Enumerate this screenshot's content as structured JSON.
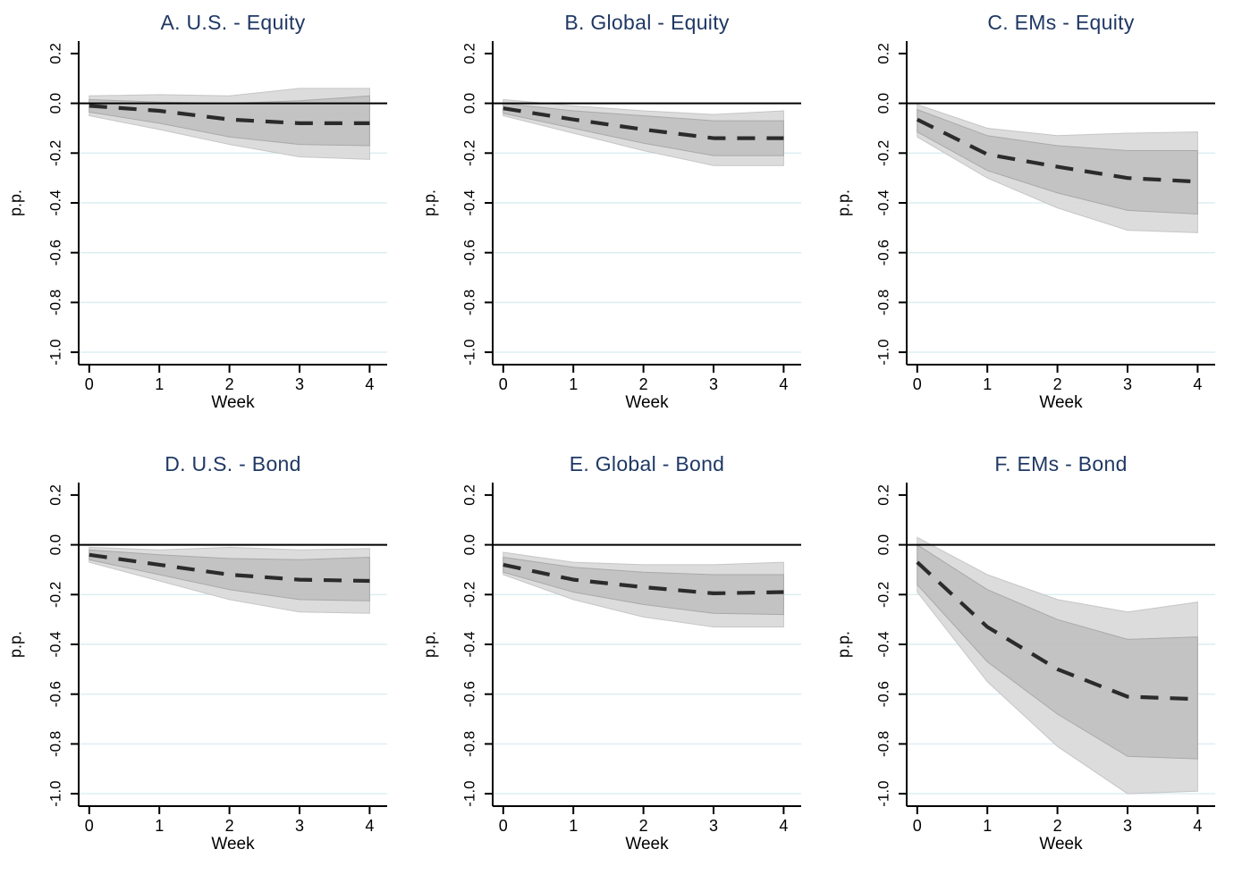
{
  "figure": {
    "description": "Six-panel impulse response figure: effect on fund flows over weeks, with dashed point estimate and two shaded confidence bands",
    "rows": 2,
    "cols": 3
  },
  "style": {
    "title_color": "#1f3864",
    "grid_color": "#daedf2",
    "axis_color": "#000000",
    "zero_line_color": "#000000",
    "line_color": "#2b2b2b",
    "inner_band_color": "#c1c1c1",
    "inner_band_edge": "#a9a9a9",
    "outer_band_color": "#dadada",
    "outer_band_edge": "#c6c6c6",
    "background_color": "#ffffff"
  },
  "chart_data": {
    "type": "line",
    "layout": "2x3 small multiples, shared axes",
    "xlabel": "Week",
    "ylabel": "p.p.",
    "x": [
      0,
      1,
      2,
      3,
      4
    ],
    "xtick_labels": [
      "0",
      "1",
      "2",
      "3",
      "4"
    ],
    "ytick_values": [
      0.2,
      0.0,
      -0.2,
      -0.4,
      -0.6,
      -0.8,
      -1.0
    ],
    "ytick_labels": [
      "0.2",
      "0.0",
      "-0.2",
      "-0.4",
      "-0.6",
      "-0.8",
      "-1.0"
    ],
    "grid_values": [
      -0.2,
      -0.4,
      -0.6,
      -0.8,
      -1.0
    ],
    "zero_line": 0.0,
    "xlim": [
      -0.15,
      4.25
    ],
    "ylim": [
      -1.05,
      0.25
    ],
    "grid": true,
    "legend": "none",
    "series_style": "dashed center line with inner (dark gray) and outer (light gray) confidence bands",
    "panels": [
      {
        "id": "A",
        "title": "A. U.S. - Equity",
        "center": [
          -0.01,
          -0.03,
          -0.065,
          -0.08,
          -0.08
        ],
        "inner_upper": [
          0.015,
          0.005,
          0.0,
          0.01,
          0.03
        ],
        "inner_lower": [
          -0.035,
          -0.08,
          -0.135,
          -0.165,
          -0.17
        ],
        "outer_upper": [
          0.03,
          0.035,
          0.03,
          0.06,
          0.06
        ],
        "outer_lower": [
          -0.05,
          -0.105,
          -0.165,
          -0.215,
          -0.225
        ]
      },
      {
        "id": "B",
        "title": "B. Global - Equity",
        "center": [
          -0.02,
          -0.065,
          -0.105,
          -0.14,
          -0.14
        ],
        "inner_upper": [
          0.0,
          -0.03,
          -0.05,
          -0.07,
          -0.07
        ],
        "inner_lower": [
          -0.04,
          -0.1,
          -0.16,
          -0.21,
          -0.21
        ],
        "outer_upper": [
          0.015,
          -0.01,
          -0.03,
          -0.045,
          -0.03
        ],
        "outer_lower": [
          -0.05,
          -0.12,
          -0.19,
          -0.25,
          -0.25
        ]
      },
      {
        "id": "C",
        "title": "C. EMs - Equity",
        "center": [
          -0.065,
          -0.205,
          -0.255,
          -0.3,
          -0.315
        ],
        "inner_upper": [
          -0.025,
          -0.13,
          -0.17,
          -0.19,
          -0.19
        ],
        "inner_lower": [
          -0.115,
          -0.27,
          -0.36,
          -0.43,
          -0.445
        ],
        "outer_upper": [
          -0.005,
          -0.1,
          -0.13,
          -0.12,
          -0.115
        ],
        "outer_lower": [
          -0.135,
          -0.3,
          -0.42,
          -0.51,
          -0.52
        ]
      },
      {
        "id": "D",
        "title": "D. U.S. - Bond",
        "center": [
          -0.04,
          -0.08,
          -0.12,
          -0.14,
          -0.145
        ],
        "inner_upper": [
          -0.02,
          -0.04,
          -0.055,
          -0.06,
          -0.05
        ],
        "inner_lower": [
          -0.06,
          -0.12,
          -0.18,
          -0.22,
          -0.225
        ],
        "outer_upper": [
          -0.01,
          -0.02,
          -0.01,
          -0.02,
          -0.015
        ],
        "outer_lower": [
          -0.07,
          -0.145,
          -0.22,
          -0.27,
          -0.275
        ]
      },
      {
        "id": "E",
        "title": "E. Global - Bond",
        "center": [
          -0.08,
          -0.14,
          -0.17,
          -0.195,
          -0.19
        ],
        "inner_upper": [
          -0.05,
          -0.09,
          -0.11,
          -0.12,
          -0.12
        ],
        "inner_lower": [
          -0.11,
          -0.19,
          -0.24,
          -0.275,
          -0.28
        ],
        "outer_upper": [
          -0.03,
          -0.07,
          -0.08,
          -0.08,
          -0.07
        ],
        "outer_lower": [
          -0.12,
          -0.22,
          -0.29,
          -0.33,
          -0.33
        ]
      },
      {
        "id": "F",
        "title": "F. EMs - Bond",
        "center": [
          -0.07,
          -0.33,
          -0.5,
          -0.61,
          -0.62
        ],
        "inner_upper": [
          0.0,
          -0.18,
          -0.3,
          -0.38,
          -0.37
        ],
        "inner_lower": [
          -0.16,
          -0.47,
          -0.68,
          -0.85,
          -0.86
        ],
        "outer_upper": [
          0.03,
          -0.12,
          -0.22,
          -0.27,
          -0.23
        ],
        "outer_lower": [
          -0.19,
          -0.55,
          -0.81,
          -1.0,
          -0.99
        ]
      }
    ]
  }
}
